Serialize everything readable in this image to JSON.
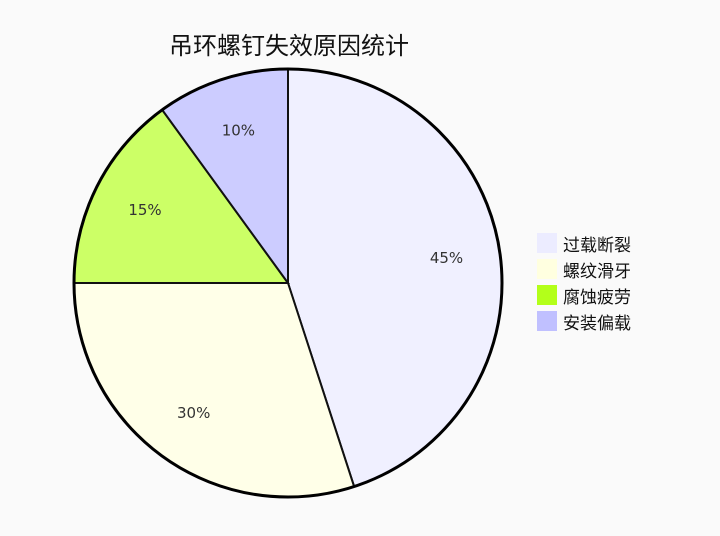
{
  "chart_data": {
    "type": "pie",
    "title": "吊环螺钉失效原因统计",
    "categories": [
      "过载断裂",
      "螺纹滑牙",
      "腐蚀疲劳",
      "安装偏载"
    ],
    "values": [
      45,
      30,
      15,
      10
    ],
    "labels": [
      "45%",
      "30%",
      "15%",
      "10%"
    ],
    "slice_colors": [
      "#f0f0ff",
      "#ffffe8",
      "#ccff66",
      "#ccccff"
    ],
    "legend_colors": [
      "#ececff",
      "#ffffe0",
      "#b3ff1a",
      "#c0c0ff"
    ],
    "legend_position": "right",
    "start": "top, clockwise"
  }
}
